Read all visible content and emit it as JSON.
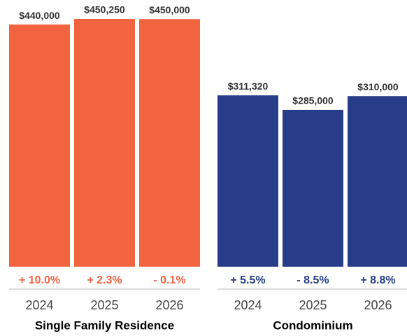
{
  "chart_data": {
    "type": "bar",
    "groups": [
      {
        "name": "Single Family Residence",
        "color": "#f26440",
        "categories": [
          "2024",
          "2025",
          "2026"
        ],
        "values": [
          440000,
          450250,
          450000
        ],
        "value_labels": [
          "$440,000",
          "$450,250",
          "$450,000"
        ],
        "change_labels": [
          "+ 10.0%",
          "+ 2.3%",
          "- 0.1%"
        ]
      },
      {
        "name": "Condominium",
        "color": "#283d8a",
        "categories": [
          "2024",
          "2025",
          "2026"
        ],
        "values": [
          311320,
          285000,
          310000
        ],
        "value_labels": [
          "$311,320",
          "$285,000",
          "$310,000"
        ],
        "change_labels": [
          "+ 5.5%",
          "- 8.5%",
          "+ 8.8%"
        ]
      }
    ]
  }
}
